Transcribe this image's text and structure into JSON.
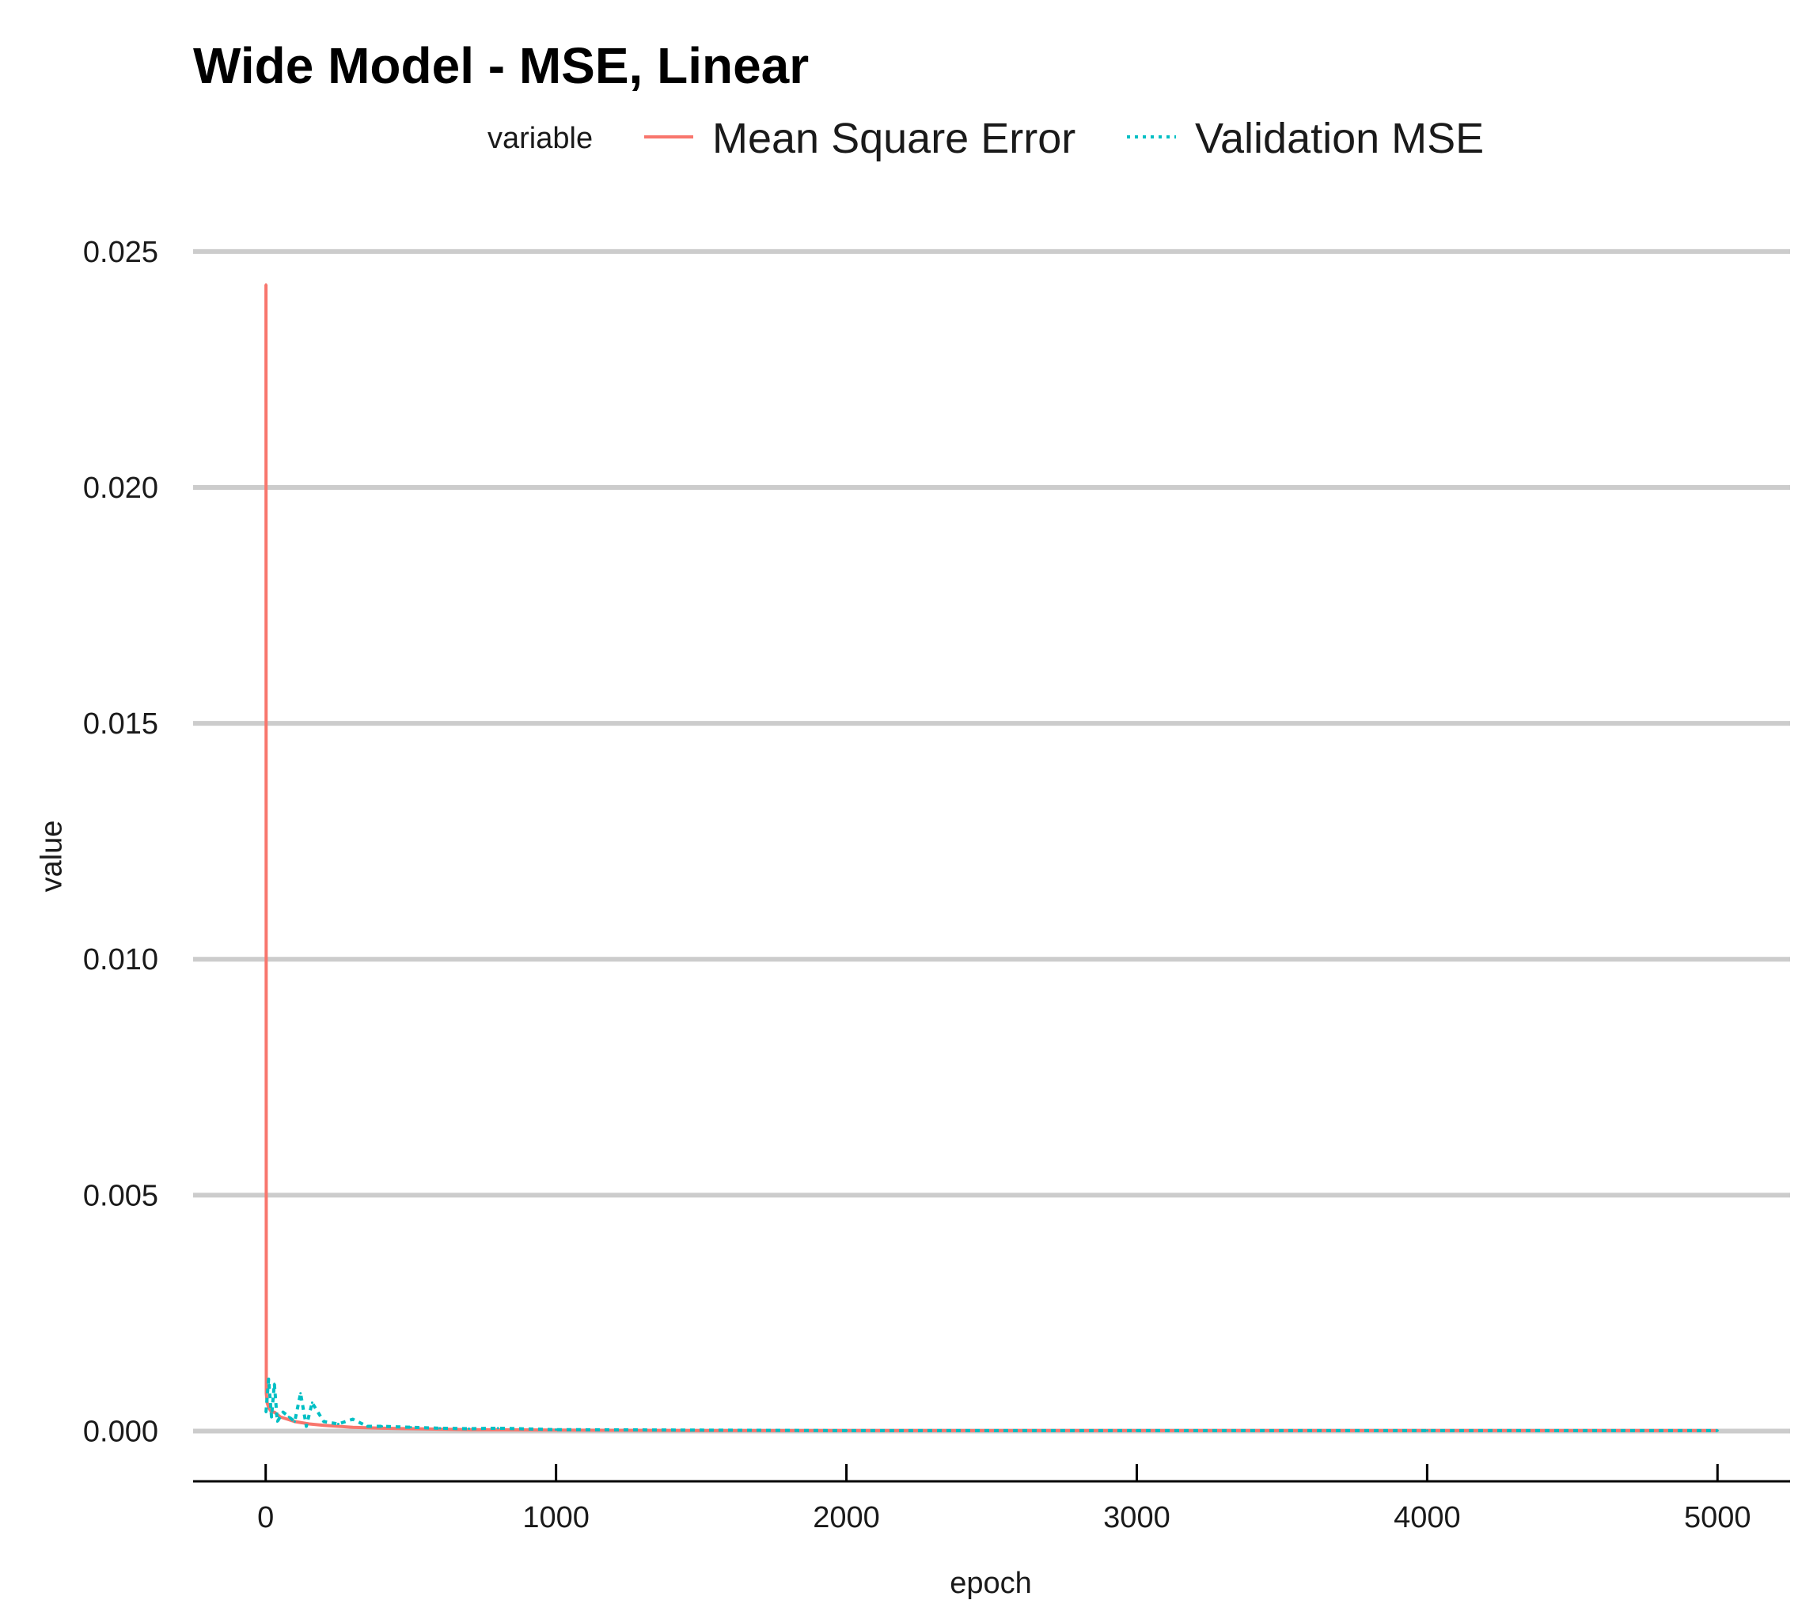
{
  "chart_data": {
    "type": "line",
    "title": "Wide Model - MSE, Linear",
    "xlabel": "epoch",
    "ylabel": "value",
    "xlim": [
      -250,
      5250
    ],
    "ylim": [
      -0.0012,
      0.0253
    ],
    "x_ticks": [
      0,
      1000,
      2000,
      3000,
      4000,
      5000
    ],
    "x_tick_labels": [
      "0",
      "1000",
      "2000",
      "3000",
      "4000",
      "5000"
    ],
    "y_ticks": [
      0.0,
      0.005,
      0.01,
      0.015,
      0.02,
      0.025
    ],
    "y_tick_labels": [
      "0.000",
      "0.005",
      "0.010",
      "0.015",
      "0.020",
      "0.025"
    ],
    "grid": "horizontal major",
    "legend": {
      "title": "variable",
      "position": "top",
      "entries": [
        "Mean Square Error",
        "Validation MSE"
      ]
    },
    "series": [
      {
        "name": "Mean Square Error",
        "color": "#F8766D",
        "linestyle": "solid",
        "x": [
          1,
          2,
          5,
          10,
          20,
          30,
          50,
          75,
          100,
          150,
          200,
          300,
          400,
          500,
          700,
          1000,
          1500,
          2000,
          3000,
          4000,
          5000
        ],
        "y": [
          0.0243,
          0.0008,
          0.0006,
          0.0005,
          0.0004,
          0.0004,
          0.0003,
          0.00025,
          0.0002,
          0.00015,
          0.00012,
          8e-05,
          6e-05,
          5e-05,
          3e-05,
          2e-05,
          1e-05,
          1e-05,
          1e-05,
          1e-05,
          1e-05
        ]
      },
      {
        "name": "Validation MSE",
        "color": "#00BFC4",
        "linestyle": "dotted",
        "x": [
          1,
          10,
          20,
          30,
          40,
          60,
          80,
          100,
          120,
          140,
          160,
          200,
          250,
          300,
          350,
          400,
          500,
          600,
          700,
          800,
          1000,
          1500,
          2000,
          3000,
          4000,
          5000
        ],
        "y": [
          0.0004,
          0.0011,
          0.0003,
          0.001,
          0.0002,
          0.0004,
          0.0003,
          0.0002,
          0.0008,
          0.0001,
          0.0006,
          0.0002,
          0.00015,
          0.00025,
          0.0001,
          0.0001,
          8e-05,
          6e-05,
          5e-05,
          6e-05,
          3e-05,
          2e-05,
          1e-05,
          1e-05,
          1e-05,
          1e-05
        ]
      }
    ]
  }
}
